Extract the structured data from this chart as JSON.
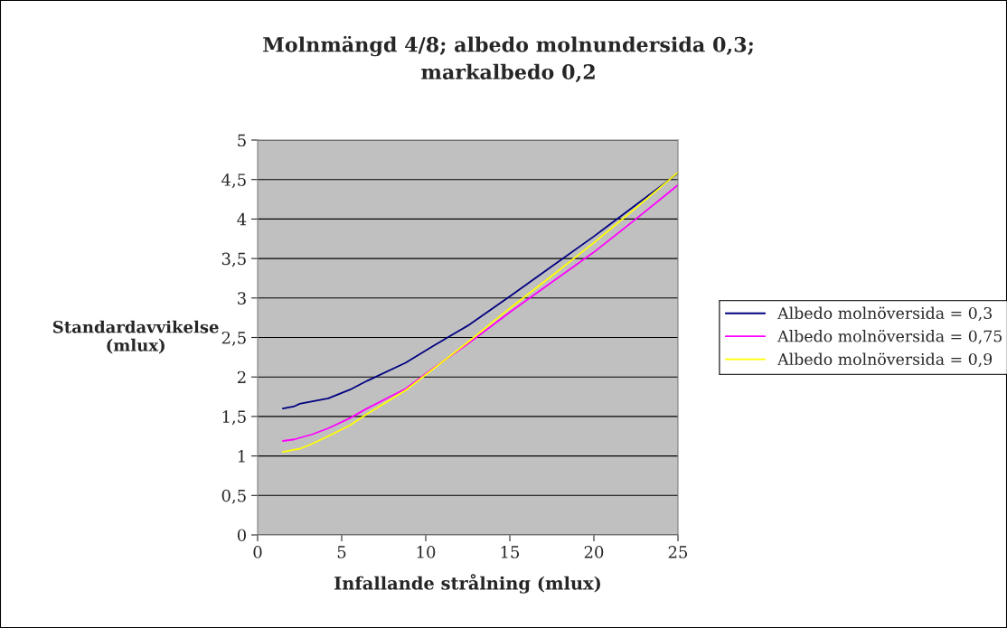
{
  "chart_data": {
    "type": "line",
    "title": "Molnmängd 4/8; albedo molnundersida 0,3;\nmarkalbedo 0,2",
    "xlabel": "Infallande strålning (mlux)",
    "ylabel": "Standardavvikelse\n(mlux)",
    "x": [
      1.5,
      2.2,
      2.5,
      3.2,
      4.2,
      5.5,
      6.5,
      8.8,
      10.5,
      12.5,
      15,
      17.5,
      20,
      22.5,
      25
    ],
    "series": [
      {
        "name": "Albedo molnöversida = 0,3",
        "color": "#000080",
        "values": [
          1.6,
          1.63,
          1.66,
          1.69,
          1.73,
          1.84,
          1.95,
          2.18,
          2.4,
          2.65,
          3.02,
          3.4,
          3.78,
          4.18,
          4.58
        ]
      },
      {
        "name": "Albedo molnöversida = 0,75",
        "color": "#ff00ff",
        "values": [
          1.19,
          1.21,
          1.23,
          1.27,
          1.35,
          1.48,
          1.6,
          1.85,
          2.12,
          2.42,
          2.82,
          3.2,
          3.58,
          4.0,
          4.43
        ]
      },
      {
        "name": "Albedo molnöversida = 0,9",
        "color": "#ffff00",
        "values": [
          1.05,
          1.08,
          1.09,
          1.15,
          1.25,
          1.39,
          1.53,
          1.83,
          2.11,
          2.44,
          2.87,
          3.28,
          3.7,
          4.14,
          4.59
        ]
      }
    ],
    "xlim": [
      0,
      25
    ],
    "xticks": [
      0,
      5,
      10,
      15,
      20,
      25
    ],
    "ylim": [
      0,
      5
    ],
    "yticks": [
      0,
      {
        "value": 0.5,
        "label": "0,5"
      },
      1,
      {
        "value": 1.5,
        "label": "1,5"
      },
      2,
      {
        "value": 2.5,
        "label": "2,5"
      },
      3,
      {
        "value": 3.5,
        "label": "3,5"
      },
      4,
      {
        "value": 4.5,
        "label": "4,5"
      },
      5
    ],
    "grid": "y",
    "legend": "right",
    "marker": "none",
    "line_style": "solid"
  }
}
